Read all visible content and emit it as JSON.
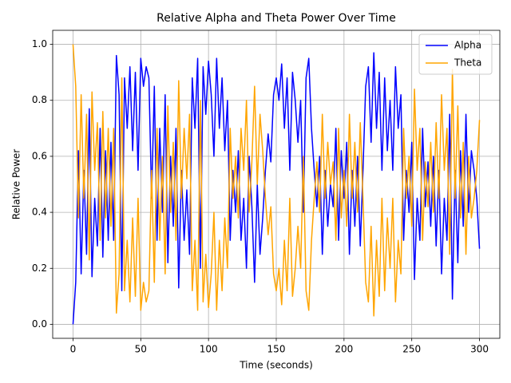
{
  "chart_data": {
    "type": "line",
    "title": "Relative Alpha and Theta Power Over Time",
    "xlabel": "Time (seconds)",
    "ylabel": "Relative Power",
    "x": [
      0,
      2,
      4,
      6,
      8,
      10,
      12,
      14,
      16,
      18,
      20,
      22,
      24,
      26,
      28,
      30,
      32,
      34,
      36,
      38,
      40,
      42,
      44,
      46,
      48,
      50,
      52,
      54,
      56,
      58,
      60,
      62,
      64,
      66,
      68,
      70,
      72,
      74,
      76,
      78,
      80,
      82,
      84,
      86,
      88,
      90,
      92,
      94,
      96,
      98,
      100,
      102,
      104,
      106,
      108,
      110,
      112,
      114,
      116,
      118,
      120,
      122,
      124,
      126,
      128,
      130,
      132,
      134,
      136,
      138,
      140,
      142,
      144,
      146,
      148,
      150,
      152,
      154,
      156,
      158,
      160,
      162,
      164,
      166,
      168,
      170,
      172,
      174,
      176,
      178,
      180,
      182,
      184,
      186,
      188,
      190,
      192,
      194,
      196,
      198,
      200,
      202,
      204,
      206,
      208,
      210,
      212,
      214,
      216,
      218,
      220,
      222,
      224,
      226,
      228,
      230,
      232,
      234,
      236,
      238,
      240,
      242,
      244,
      246,
      248,
      250,
      252,
      254,
      256,
      258,
      260,
      262,
      264,
      266,
      268,
      270,
      272,
      274,
      276,
      278,
      280,
      282,
      284,
      286,
      288,
      290,
      292,
      294,
      296,
      298,
      300
    ],
    "series": [
      {
        "name": "Alpha",
        "color": "#0000ff",
        "values": [
          0.0,
          0.15,
          0.62,
          0.18,
          0.55,
          0.25,
          0.77,
          0.17,
          0.45,
          0.28,
          0.7,
          0.24,
          0.62,
          0.3,
          0.65,
          0.3,
          0.96,
          0.82,
          0.12,
          0.88,
          0.7,
          0.92,
          0.62,
          0.9,
          0.55,
          0.95,
          0.85,
          0.92,
          0.88,
          0.45,
          0.85,
          0.3,
          0.7,
          0.4,
          0.82,
          0.22,
          0.6,
          0.35,
          0.7,
          0.13,
          0.55,
          0.3,
          0.48,
          0.25,
          0.88,
          0.7,
          0.95,
          0.2,
          0.92,
          0.75,
          0.94,
          0.82,
          0.6,
          0.95,
          0.7,
          0.88,
          0.62,
          0.8,
          0.3,
          0.55,
          0.4,
          0.62,
          0.3,
          0.45,
          0.2,
          0.6,
          0.42,
          0.15,
          0.5,
          0.25,
          0.38,
          0.55,
          0.68,
          0.58,
          0.82,
          0.88,
          0.8,
          0.93,
          0.7,
          0.88,
          0.55,
          0.9,
          0.8,
          0.65,
          0.8,
          0.4,
          0.88,
          0.95,
          0.7,
          0.55,
          0.42,
          0.6,
          0.25,
          0.55,
          0.35,
          0.5,
          0.42,
          0.7,
          0.3,
          0.62,
          0.45,
          0.65,
          0.25,
          0.55,
          0.35,
          0.6,
          0.28,
          0.55,
          0.85,
          0.92,
          0.65,
          0.97,
          0.7,
          0.9,
          0.55,
          0.88,
          0.62,
          0.8,
          0.55,
          0.92,
          0.7,
          0.82,
          0.3,
          0.55,
          0.4,
          0.65,
          0.16,
          0.45,
          0.3,
          0.7,
          0.42,
          0.58,
          0.35,
          0.6,
          0.28,
          0.55,
          0.18,
          0.45,
          0.3,
          0.75,
          0.09,
          0.55,
          0.22,
          0.62,
          0.35,
          0.75,
          0.4,
          0.62,
          0.55,
          0.45,
          0.27
        ]
      },
      {
        "name": "Theta",
        "color": "#ffa500",
        "values": [
          1.0,
          0.85,
          0.38,
          0.82,
          0.45,
          0.75,
          0.23,
          0.83,
          0.55,
          0.72,
          0.3,
          0.76,
          0.38,
          0.7,
          0.35,
          0.7,
          0.04,
          0.18,
          0.88,
          0.12,
          0.3,
          0.08,
          0.38,
          0.1,
          0.45,
          0.05,
          0.15,
          0.08,
          0.12,
          0.55,
          0.15,
          0.7,
          0.3,
          0.6,
          0.18,
          0.78,
          0.4,
          0.65,
          0.3,
          0.87,
          0.45,
          0.7,
          0.52,
          0.75,
          0.12,
          0.3,
          0.05,
          0.8,
          0.08,
          0.25,
          0.06,
          0.18,
          0.4,
          0.05,
          0.3,
          0.12,
          0.38,
          0.2,
          0.7,
          0.45,
          0.6,
          0.38,
          0.7,
          0.55,
          0.8,
          0.4,
          0.58,
          0.85,
          0.5,
          0.75,
          0.62,
          0.45,
          0.32,
          0.42,
          0.18,
          0.12,
          0.2,
          0.07,
          0.3,
          0.12,
          0.45,
          0.1,
          0.2,
          0.35,
          0.2,
          0.6,
          0.12,
          0.05,
          0.3,
          0.45,
          0.58,
          0.4,
          0.75,
          0.45,
          0.65,
          0.5,
          0.58,
          0.3,
          0.7,
          0.38,
          0.55,
          0.35,
          0.75,
          0.45,
          0.65,
          0.4,
          0.72,
          0.45,
          0.15,
          0.08,
          0.35,
          0.03,
          0.3,
          0.1,
          0.45,
          0.12,
          0.38,
          0.2,
          0.45,
          0.08,
          0.3,
          0.18,
          0.7,
          0.45,
          0.6,
          0.35,
          0.84,
          0.55,
          0.7,
          0.3,
          0.58,
          0.42,
          0.65,
          0.4,
          0.72,
          0.45,
          0.82,
          0.55,
          0.7,
          0.25,
          0.91,
          0.45,
          0.78,
          0.38,
          0.65,
          0.25,
          0.6,
          0.38,
          0.45,
          0.55,
          0.73
        ]
      }
    ],
    "xlim": [
      -15,
      315
    ],
    "ylim": [
      -0.05,
      1.05
    ],
    "xticks": [
      0,
      50,
      100,
      150,
      200,
      250,
      300
    ],
    "yticks": [
      {
        "value": 0,
        "label": "0.0"
      },
      0.2,
      0.4,
      0.6,
      0.8,
      {
        "value": 1,
        "label": "1.0"
      }
    ],
    "grid": true,
    "legend": "upper right"
  }
}
